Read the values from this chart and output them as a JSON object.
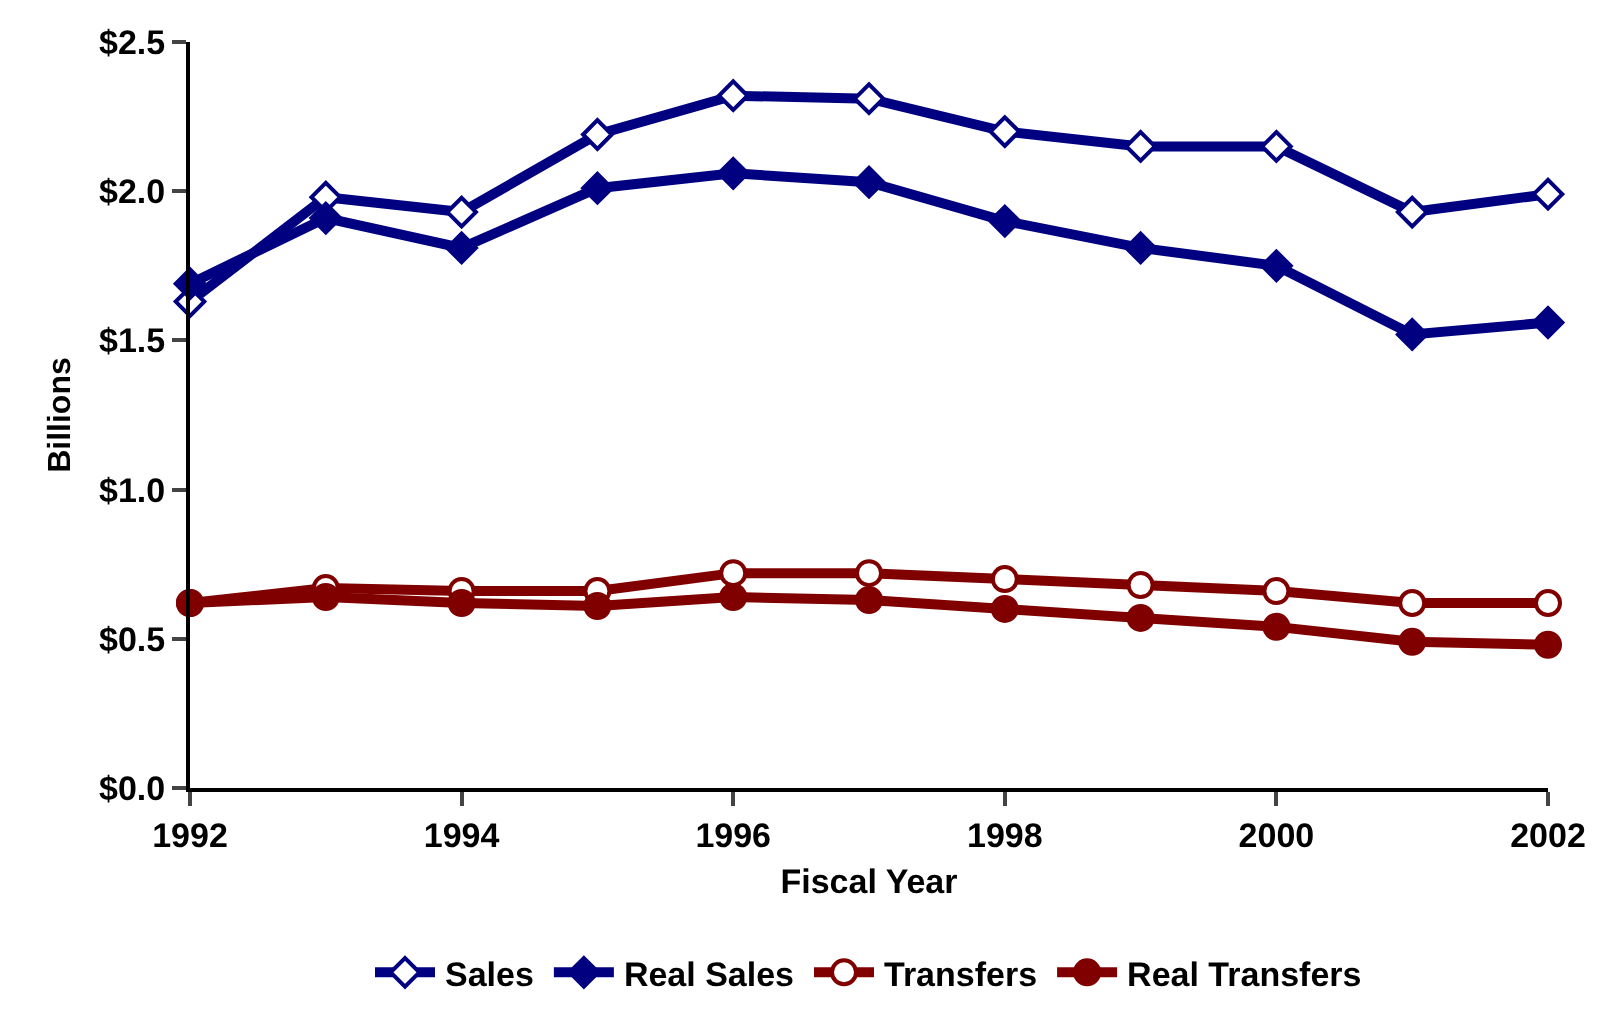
{
  "chart_data": {
    "type": "line",
    "xlabel": "Fiscal Year",
    "ylabel": "Billions",
    "x": [
      1992,
      1993,
      1994,
      1995,
      1996,
      1997,
      1998,
      1999,
      2000,
      2001,
      2002
    ],
    "xlim": [
      1992,
      2002
    ],
    "xticks": [
      1992,
      1994,
      1996,
      1998,
      2000,
      2002
    ],
    "ylim": [
      0,
      2.5
    ],
    "yticks": [
      {
        "value": 0,
        "label": "$0.0"
      },
      {
        "value": 0.5,
        "label": "$0.5"
      },
      {
        "value": 1,
        "label": "$1.0"
      },
      {
        "value": 1.5,
        "label": "$1.5"
      },
      {
        "value": 2,
        "label": "$2.0"
      },
      {
        "value": 2.5,
        "label": "$2.5"
      }
    ],
    "legend": "bottom",
    "line_style": "solid",
    "series": [
      {
        "name": "Sales",
        "color": "#000080",
        "marker": "diamond-open",
        "values": [
          1.63,
          1.98,
          1.93,
          2.19,
          2.32,
          2.31,
          2.2,
          2.15,
          2.15,
          1.93,
          1.99
        ]
      },
      {
        "name": "Real Sales",
        "color": "#000080",
        "marker": "diamond",
        "values": [
          1.69,
          1.91,
          1.81,
          2.01,
          2.06,
          2.03,
          1.9,
          1.81,
          1.75,
          1.52,
          1.56
        ]
      },
      {
        "name": "Transfers",
        "color": "#800000",
        "marker": "circle-open",
        "values": [
          0.62,
          0.67,
          0.66,
          0.66,
          0.72,
          0.72,
          0.7,
          0.68,
          0.66,
          0.62,
          0.62
        ]
      },
      {
        "name": "Real Transfers",
        "color": "#800000",
        "marker": "circle",
        "values": [
          0.62,
          0.64,
          0.62,
          0.61,
          0.64,
          0.63,
          0.6,
          0.57,
          0.54,
          0.49,
          0.48
        ]
      }
    ]
  }
}
